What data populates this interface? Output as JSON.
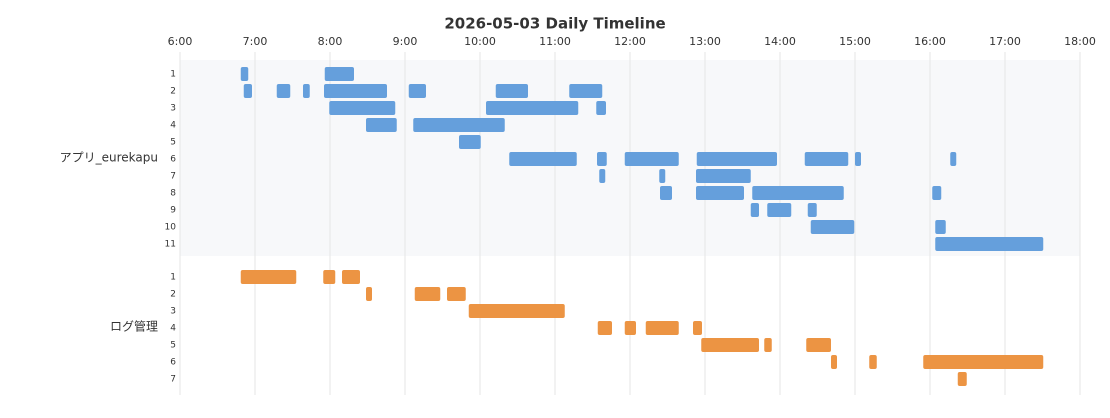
{
  "chart_data": {
    "type": "timeline",
    "title": "2026-05-03 Daily Timeline",
    "xlim": [
      6,
      18
    ],
    "xticks": [
      {
        "value": 6,
        "label": "6:00"
      },
      {
        "value": 7,
        "label": "7:00"
      },
      {
        "value": 8,
        "label": "8:00"
      },
      {
        "value": 9,
        "label": "9:00"
      },
      {
        "value": 10,
        "label": "10:00"
      },
      {
        "value": 11,
        "label": "11:00"
      },
      {
        "value": 12,
        "label": "12:00"
      },
      {
        "value": 13,
        "label": "13:00"
      },
      {
        "value": 14,
        "label": "14:00"
      },
      {
        "value": 15,
        "label": "15:00"
      },
      {
        "value": 16,
        "label": "16:00"
      },
      {
        "value": 17,
        "label": "17:00"
      },
      {
        "value": 18,
        "label": "18:00"
      }
    ],
    "grid": true,
    "groups": [
      {
        "name": "アプリ_eurekapu",
        "color": "#659fdc",
        "rows": [
          {
            "label": "1",
            "bars": [
              [
                6.81,
                6.91
              ],
              [
                7.93,
                8.32
              ]
            ]
          },
          {
            "label": "2",
            "bars": [
              [
                6.85,
                6.96
              ],
              [
                7.29,
                7.47
              ],
              [
                7.64,
                7.73
              ],
              [
                7.92,
                8.76
              ],
              [
                9.05,
                9.28
              ],
              [
                10.21,
                10.64
              ],
              [
                11.19,
                11.63
              ]
            ]
          },
          {
            "label": "3",
            "bars": [
              [
                7.99,
                8.87
              ],
              [
                10.08,
                11.31
              ],
              [
                11.55,
                11.68
              ]
            ]
          },
          {
            "label": "4",
            "bars": [
              [
                8.48,
                8.89
              ],
              [
                9.11,
                10.33
              ]
            ]
          },
          {
            "label": "5",
            "bars": [
              [
                9.72,
                10.01
              ]
            ]
          },
          {
            "label": "6",
            "bars": [
              [
                10.39,
                11.29
              ],
              [
                11.56,
                11.69
              ],
              [
                11.93,
                12.65
              ],
              [
                12.89,
                13.96
              ],
              [
                14.33,
                14.91
              ],
              [
                15.0,
                15.08
              ],
              [
                16.27,
                16.35
              ]
            ]
          },
          {
            "label": "7",
            "bars": [
              [
                11.59,
                11.67
              ],
              [
                12.39,
                12.47
              ],
              [
                12.88,
                13.61
              ]
            ]
          },
          {
            "label": "8",
            "bars": [
              [
                12.4,
                12.56
              ],
              [
                12.88,
                13.52
              ],
              [
                13.63,
                14.85
              ],
              [
                16.03,
                16.15
              ]
            ]
          },
          {
            "label": "9",
            "bars": [
              [
                13.61,
                13.72
              ],
              [
                13.83,
                14.15
              ],
              [
                14.37,
                14.49
              ]
            ]
          },
          {
            "label": "10",
            "bars": [
              [
                14.41,
                14.99
              ],
              [
                16.07,
                16.21
              ]
            ]
          },
          {
            "label": "11",
            "bars": [
              [
                16.07,
                17.51
              ]
            ]
          }
        ]
      },
      {
        "name": "ログ管理",
        "color": "#ec9443",
        "rows": [
          {
            "label": "1",
            "bars": [
              [
                6.81,
                7.55
              ],
              [
                7.91,
                8.07
              ],
              [
                8.16,
                8.4
              ]
            ]
          },
          {
            "label": "2",
            "bars": [
              [
                8.48,
                8.56
              ],
              [
                9.13,
                9.47
              ],
              [
                9.56,
                9.81
              ]
            ]
          },
          {
            "label": "3",
            "bars": [
              [
                9.85,
                11.13
              ]
            ]
          },
          {
            "label": "4",
            "bars": [
              [
                11.57,
                11.76
              ],
              [
                11.93,
                12.08
              ],
              [
                12.21,
                12.65
              ],
              [
                12.84,
                12.96
              ]
            ]
          },
          {
            "label": "5",
            "bars": [
              [
                12.95,
                13.72
              ],
              [
                13.79,
                13.89
              ],
              [
                14.35,
                14.68
              ]
            ]
          },
          {
            "label": "6",
            "bars": [
              [
                14.68,
                14.76
              ],
              [
                15.19,
                15.29
              ],
              [
                15.91,
                17.51
              ]
            ]
          },
          {
            "label": "7",
            "bars": [
              [
                16.37,
                16.49
              ]
            ]
          }
        ]
      }
    ]
  }
}
